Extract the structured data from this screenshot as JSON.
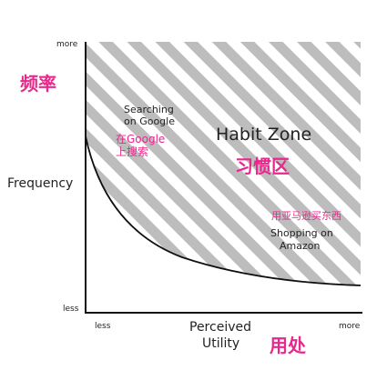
{
  "y_axis": {
    "top_label": "more",
    "bottom_label": "less",
    "title": "Frequency",
    "title_zh": "频率"
  },
  "x_axis": {
    "left_label": "less",
    "right_label": "more",
    "title_line1": "Perceived",
    "title_line2": "Utility",
    "title_zh": "用处"
  },
  "zone": {
    "title": "Habit Zone",
    "title_zh": "习惯区"
  },
  "annotations": {
    "google": {
      "line1": "Searching",
      "line2": "on Google",
      "zh_line1": "在Google",
      "zh_line2": "上搜索"
    },
    "amazon": {
      "zh": "用亚马逊买东西",
      "line1": "Shopping on",
      "line2": "Amazon"
    }
  },
  "colors": {
    "hatch": "#bdbdbd",
    "axis": "#111111",
    "zh_text": "#e8288c"
  }
}
